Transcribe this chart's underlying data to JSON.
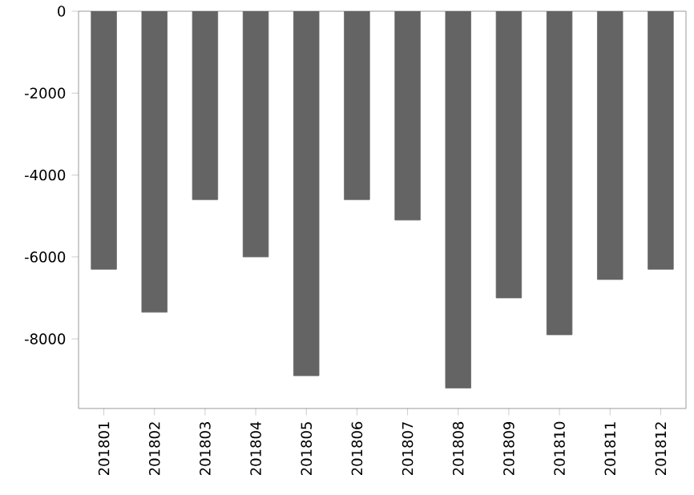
{
  "chart_data": {
    "type": "bar",
    "categories": [
      "201801",
      "201802",
      "201803",
      "201804",
      "201805",
      "201806",
      "201807",
      "201808",
      "201809",
      "201810",
      "201811",
      "201812"
    ],
    "values": [
      -6300,
      -7350,
      -4600,
      -6000,
      -8900,
      -4600,
      -5100,
      -9200,
      -7000,
      -7900,
      -6550,
      -6300
    ],
    "color": "#646464",
    "ylim": [
      -9700,
      0
    ],
    "yticks": [
      0,
      -2000,
      -4000,
      -6000,
      -8000
    ],
    "grid": false
  }
}
